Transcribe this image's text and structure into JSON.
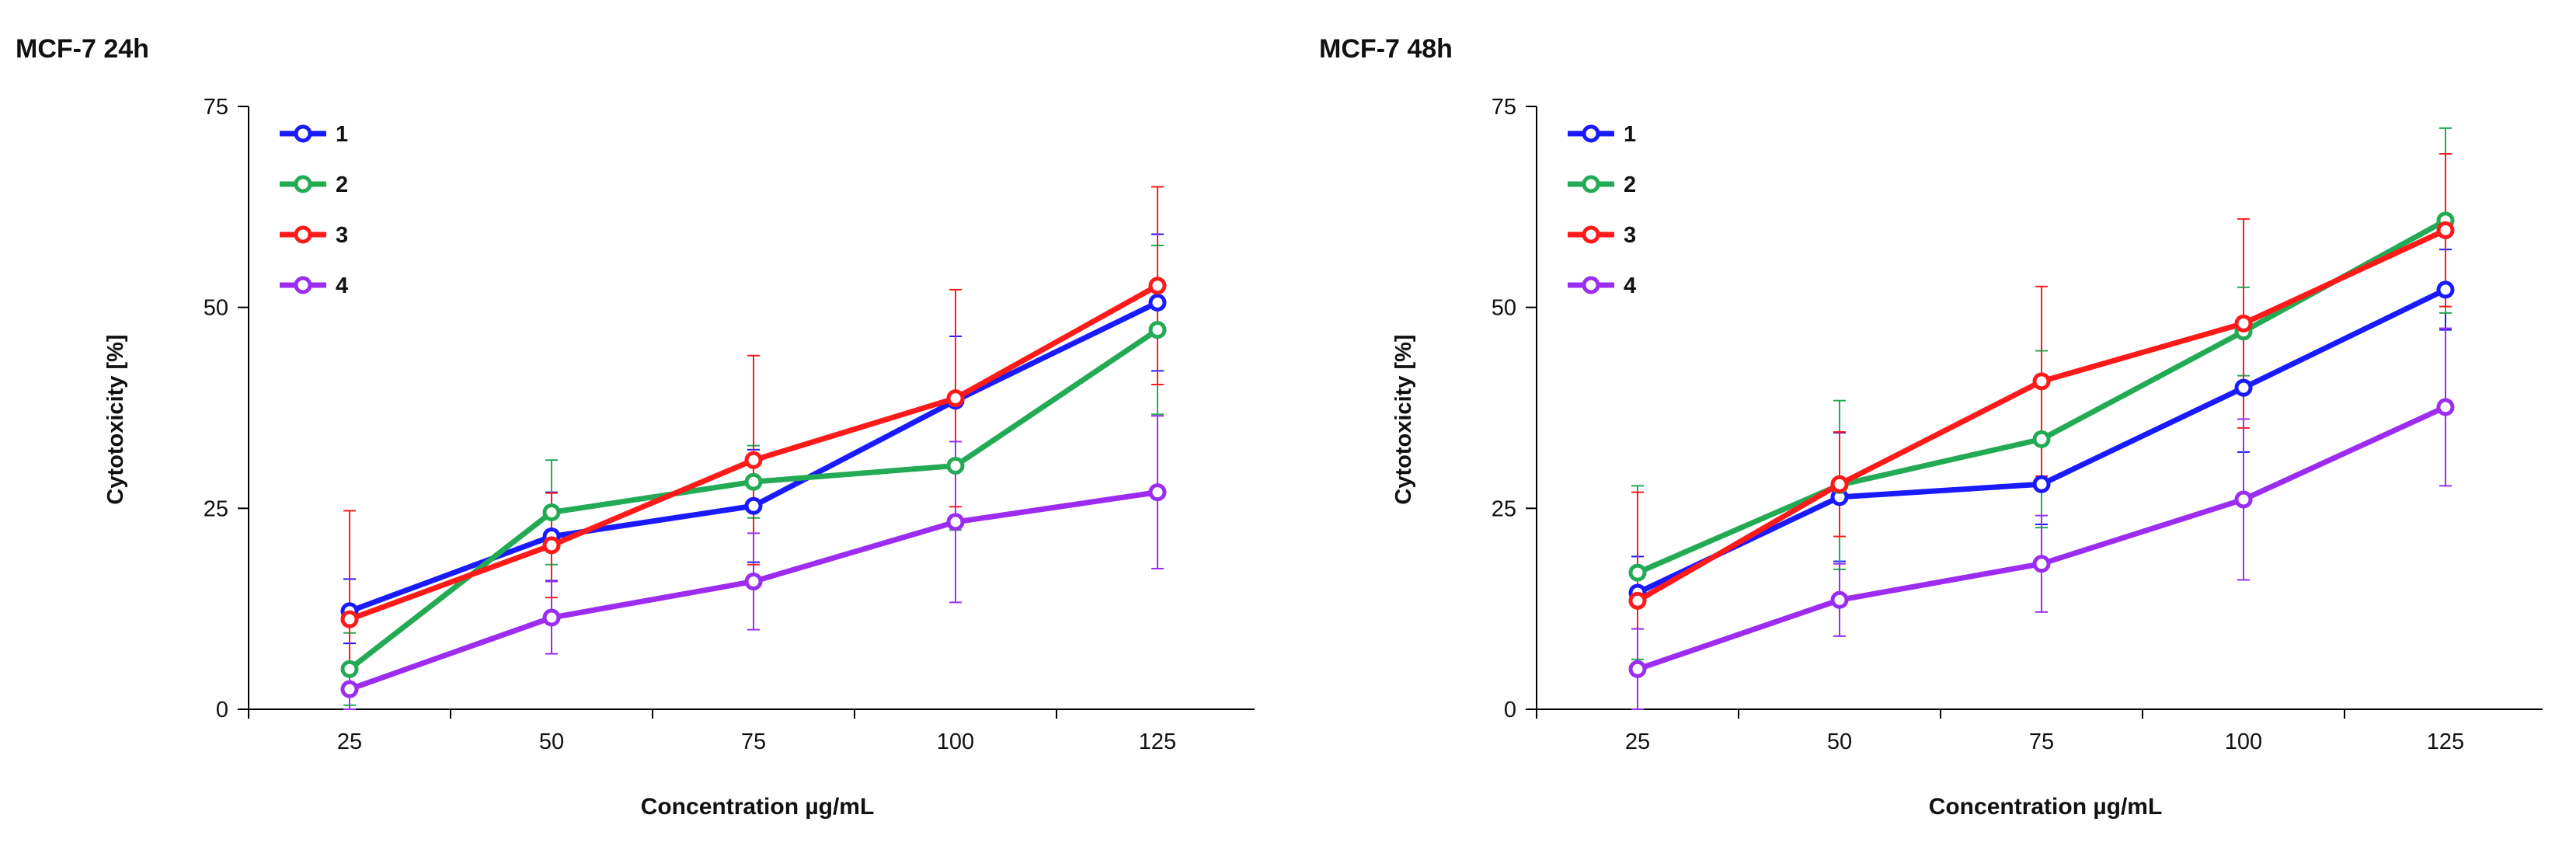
{
  "colors": {
    "series": [
      "#1a1aff",
      "#22aa55",
      "#ff1a1a",
      "#9b2cf0"
    ],
    "axis": "#000000"
  },
  "chart_data": [
    {
      "type": "line",
      "title": "MCF-7 24h",
      "xlabel": "Concentration µg/mL",
      "ylabel": "Cytotoxicity [%]",
      "ylim": [
        0,
        75
      ],
      "yticks": [
        0,
        25,
        50,
        75
      ],
      "categories": [
        "25",
        "50",
        "75",
        "100",
        "125"
      ],
      "legend_position": "top-left",
      "grid": false,
      "series": [
        {
          "name": "1",
          "values": [
            12.2,
            21.5,
            25.3,
            38.4,
            50.6
          ],
          "errors": [
            4.0,
            5.5,
            7.0,
            8.0,
            8.5
          ]
        },
        {
          "name": "2",
          "values": [
            5.0,
            24.5,
            28.3,
            30.3,
            47.2
          ],
          "errors": [
            4.5,
            6.5,
            4.5,
            8.0,
            10.5
          ]
        },
        {
          "name": "3",
          "values": [
            11.2,
            20.4,
            31.0,
            38.7,
            52.7
          ],
          "errors": [
            13.5,
            6.5,
            13.0,
            13.5,
            12.3
          ]
        },
        {
          "name": "4",
          "values": [
            2.5,
            11.4,
            15.9,
            23.3,
            27.0
          ],
          "errors": [
            2.5,
            4.5,
            6.0,
            10.0,
            9.5
          ]
        }
      ]
    },
    {
      "type": "line",
      "title": "MCF-7 48h",
      "xlabel": "Concentration µg/mL",
      "ylabel": "Cytotoxicity [%]",
      "ylim": [
        0,
        75
      ],
      "yticks": [
        0,
        25,
        50,
        75
      ],
      "categories": [
        "25",
        "50",
        "75",
        "100",
        "125"
      ],
      "legend_position": "top-left",
      "grid": false,
      "series": [
        {
          "name": "1",
          "values": [
            14.5,
            26.4,
            28.0,
            40.0,
            52.2
          ],
          "errors": [
            4.5,
            8.0,
            5.0,
            8.0,
            5.0
          ]
        },
        {
          "name": "2",
          "values": [
            17.0,
            27.9,
            33.6,
            47.0,
            60.8
          ],
          "errors": [
            10.8,
            10.5,
            11.0,
            5.5,
            11.5
          ]
        },
        {
          "name": "3",
          "values": [
            13.5,
            28.0,
            40.8,
            48.0,
            59.6
          ],
          "errors": [
            13.5,
            6.5,
            11.8,
            13.0,
            9.5
          ]
        },
        {
          "name": "4",
          "values": [
            5.0,
            13.6,
            18.1,
            26.1,
            37.6
          ],
          "errors": [
            5.0,
            4.5,
            6.0,
            10.0,
            9.8
          ]
        }
      ]
    }
  ]
}
